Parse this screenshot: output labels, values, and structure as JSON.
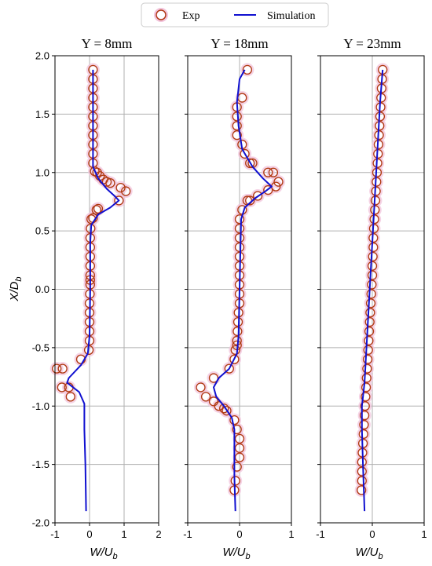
{
  "legend": {
    "exp_label": "Exp",
    "sim_label": "Simulation",
    "position": "top-center"
  },
  "colors": {
    "exp_marker": "#b03a10",
    "exp_halo": "#f2c4dc",
    "simulation_line": "#1010d0",
    "grid": "#b0b0b0"
  },
  "chart_data": [
    {
      "type": "scatter",
      "title": "Y = 8mm",
      "xlabel": "W/U_b",
      "ylabel": "X/D_b",
      "xlim": [
        -1,
        2
      ],
      "ylim": [
        -2,
        2
      ],
      "xticks": [
        "-1",
        "0",
        "1",
        "2"
      ],
      "yticks": [
        "2.0",
        "1.5",
        "1.0",
        "0.5",
        "0.0",
        "-0.5",
        "-1.0",
        "-1.5",
        "-2.0"
      ],
      "grid": true,
      "series": [
        {
          "name": "Exp",
          "kind": "markers",
          "points": [
            [
              0.1,
              1.88
            ],
            [
              0.1,
              1.8
            ],
            [
              0.1,
              1.72
            ],
            [
              0.1,
              1.64
            ],
            [
              0.1,
              1.56
            ],
            [
              0.1,
              1.48
            ],
            [
              0.1,
              1.4
            ],
            [
              0.1,
              1.32
            ],
            [
              0.1,
              1.24
            ],
            [
              0.1,
              1.16
            ],
            [
              0.1,
              1.08
            ],
            [
              0.15,
              1.01
            ],
            [
              0.22,
              1.0
            ],
            [
              0.3,
              0.97
            ],
            [
              0.4,
              0.94
            ],
            [
              0.5,
              0.92
            ],
            [
              0.6,
              0.91
            ],
            [
              0.9,
              0.87
            ],
            [
              1.05,
              0.84
            ],
            [
              0.85,
              0.76
            ],
            [
              0.25,
              0.69
            ],
            [
              0.2,
              0.68
            ],
            [
              0.1,
              0.61
            ],
            [
              0.05,
              0.6
            ],
            [
              0.03,
              0.52
            ],
            [
              0.02,
              0.44
            ],
            [
              0.02,
              0.36
            ],
            [
              0.02,
              0.28
            ],
            [
              0.02,
              0.2
            ],
            [
              0.02,
              0.12
            ],
            [
              0.02,
              0.08
            ],
            [
              0.02,
              0.04
            ],
            [
              0.01,
              -0.04
            ],
            [
              0.0,
              -0.12
            ],
            [
              0.0,
              -0.2
            ],
            [
              0.0,
              -0.28
            ],
            [
              0.0,
              -0.36
            ],
            [
              0.0,
              -0.44
            ],
            [
              -0.02,
              -0.52
            ],
            [
              -0.25,
              -0.6
            ],
            [
              -0.95,
              -0.68
            ],
            [
              -0.78,
              -0.68
            ],
            [
              -0.8,
              -0.84
            ],
            [
              -0.6,
              -0.84
            ],
            [
              -0.55,
              -0.92
            ]
          ]
        },
        {
          "name": "Simulation",
          "kind": "line",
          "points": [
            [
              0.1,
              1.88
            ],
            [
              0.1,
              1.5
            ],
            [
              0.1,
              1.2
            ],
            [
              0.1,
              1.05
            ],
            [
              0.25,
              0.95
            ],
            [
              0.5,
              0.86
            ],
            [
              0.72,
              0.8
            ],
            [
              0.85,
              0.76
            ],
            [
              0.6,
              0.7
            ],
            [
              0.25,
              0.64
            ],
            [
              0.05,
              0.55
            ],
            [
              0.02,
              0.4
            ],
            [
              0.02,
              0.0
            ],
            [
              0.0,
              -0.4
            ],
            [
              -0.05,
              -0.55
            ],
            [
              -0.25,
              -0.65
            ],
            [
              -0.6,
              -0.76
            ],
            [
              -0.65,
              -0.8
            ],
            [
              -0.3,
              -0.88
            ],
            [
              -0.15,
              -0.98
            ],
            [
              -0.15,
              -1.2
            ],
            [
              -0.12,
              -1.5
            ],
            [
              -0.1,
              -1.9
            ]
          ]
        }
      ]
    },
    {
      "type": "scatter",
      "title": "Y = 18mm",
      "xlabel": "W/U_b",
      "ylabel": "",
      "xlim": [
        -1,
        1
      ],
      "ylim": [
        -2,
        2
      ],
      "xticks": [
        "-1",
        "0",
        "1"
      ],
      "grid": true,
      "series": [
        {
          "name": "Exp",
          "kind": "markers",
          "points": [
            [
              0.15,
              1.88
            ],
            [
              0.05,
              1.64
            ],
            [
              -0.05,
              1.56
            ],
            [
              -0.05,
              1.48
            ],
            [
              -0.05,
              1.4
            ],
            [
              -0.05,
              1.32
            ],
            [
              0.05,
              1.24
            ],
            [
              0.1,
              1.16
            ],
            [
              0.2,
              1.08
            ],
            [
              0.25,
              1.08
            ],
            [
              0.55,
              1.0
            ],
            [
              0.65,
              1.0
            ],
            [
              0.75,
              0.92
            ],
            [
              0.7,
              0.88
            ],
            [
              0.55,
              0.85
            ],
            [
              0.35,
              0.8
            ],
            [
              0.2,
              0.76
            ],
            [
              0.15,
              0.76
            ],
            [
              0.05,
              0.68
            ],
            [
              0.0,
              0.6
            ],
            [
              0.0,
              0.52
            ],
            [
              0.0,
              0.44
            ],
            [
              0.0,
              0.36
            ],
            [
              0.0,
              0.28
            ],
            [
              0.0,
              0.2
            ],
            [
              0.0,
              0.12
            ],
            [
              0.0,
              0.04
            ],
            [
              0.0,
              -0.04
            ],
            [
              0.0,
              -0.12
            ],
            [
              -0.02,
              -0.2
            ],
            [
              -0.03,
              -0.28
            ],
            [
              -0.04,
              -0.36
            ],
            [
              -0.05,
              -0.44
            ],
            [
              -0.05,
              -0.48
            ],
            [
              -0.08,
              -0.52
            ],
            [
              -0.1,
              -0.6
            ],
            [
              -0.2,
              -0.68
            ],
            [
              -0.5,
              -0.76
            ],
            [
              -0.75,
              -0.84
            ],
            [
              -0.65,
              -0.92
            ],
            [
              -0.5,
              -0.96
            ],
            [
              -0.4,
              -1.0
            ],
            [
              -0.3,
              -1.02
            ],
            [
              -0.25,
              -1.04
            ],
            [
              -0.1,
              -1.12
            ],
            [
              -0.05,
              -1.2
            ],
            [
              0.0,
              -1.28
            ],
            [
              0.0,
              -1.36
            ],
            [
              0.0,
              -1.44
            ],
            [
              -0.05,
              -1.52
            ],
            [
              -0.08,
              -1.64
            ],
            [
              -0.1,
              -1.72
            ]
          ]
        },
        {
          "name": "Simulation",
          "kind": "line",
          "points": [
            [
              0.1,
              1.88
            ],
            [
              0.0,
              1.8
            ],
            [
              -0.05,
              1.6
            ],
            [
              -0.02,
              1.4
            ],
            [
              0.05,
              1.2
            ],
            [
              0.25,
              1.05
            ],
            [
              0.45,
              0.95
            ],
            [
              0.62,
              0.88
            ],
            [
              0.5,
              0.84
            ],
            [
              0.3,
              0.78
            ],
            [
              0.1,
              0.7
            ],
            [
              0.03,
              0.6
            ],
            [
              0.02,
              0.4
            ],
            [
              0.0,
              0.0
            ],
            [
              -0.02,
              -0.4
            ],
            [
              -0.05,
              -0.55
            ],
            [
              -0.2,
              -0.68
            ],
            [
              -0.4,
              -0.76
            ],
            [
              -0.5,
              -0.84
            ],
            [
              -0.45,
              -0.92
            ],
            [
              -0.3,
              -1.0
            ],
            [
              -0.15,
              -1.1
            ],
            [
              -0.1,
              -1.2
            ],
            [
              -0.1,
              -1.4
            ],
            [
              -0.1,
              -1.6
            ],
            [
              -0.08,
              -1.9
            ]
          ]
        }
      ]
    },
    {
      "type": "scatter",
      "title": "Y = 23mm",
      "xlabel": "W/U_b",
      "ylabel": "",
      "xlim": [
        -1,
        1
      ],
      "ylim": [
        -2,
        2
      ],
      "xticks": [
        "-1",
        "0",
        "1"
      ],
      "grid": true,
      "series": [
        {
          "name": "Exp",
          "kind": "markers",
          "points": [
            [
              0.2,
              1.88
            ],
            [
              0.19,
              1.8
            ],
            [
              0.18,
              1.72
            ],
            [
              0.17,
              1.64
            ],
            [
              0.16,
              1.56
            ],
            [
              0.15,
              1.48
            ],
            [
              0.14,
              1.4
            ],
            [
              0.13,
              1.32
            ],
            [
              0.12,
              1.24
            ],
            [
              0.11,
              1.16
            ],
            [
              0.1,
              1.08
            ],
            [
              0.09,
              1.0
            ],
            [
              0.08,
              0.92
            ],
            [
              0.07,
              0.84
            ],
            [
              0.06,
              0.76
            ],
            [
              0.05,
              0.68
            ],
            [
              0.04,
              0.6
            ],
            [
              0.03,
              0.52
            ],
            [
              0.02,
              0.44
            ],
            [
              0.02,
              0.36
            ],
            [
              0.01,
              0.28
            ],
            [
              0.0,
              0.2
            ],
            [
              0.0,
              0.12
            ],
            [
              -0.01,
              0.04
            ],
            [
              -0.02,
              -0.04
            ],
            [
              -0.03,
              -0.12
            ],
            [
              -0.04,
              -0.2
            ],
            [
              -0.05,
              -0.28
            ],
            [
              -0.06,
              -0.36
            ],
            [
              -0.07,
              -0.44
            ],
            [
              -0.08,
              -0.52
            ],
            [
              -0.09,
              -0.6
            ],
            [
              -0.1,
              -0.68
            ],
            [
              -0.11,
              -0.76
            ],
            [
              -0.12,
              -0.84
            ],
            [
              -0.13,
              -0.92
            ],
            [
              -0.14,
              -1.0
            ],
            [
              -0.15,
              -1.08
            ],
            [
              -0.16,
              -1.16
            ],
            [
              -0.17,
              -1.24
            ],
            [
              -0.18,
              -1.32
            ],
            [
              -0.19,
              -1.4
            ],
            [
              -0.2,
              -1.48
            ],
            [
              -0.2,
              -1.56
            ],
            [
              -0.2,
              -1.64
            ],
            [
              -0.21,
              -1.72
            ]
          ]
        },
        {
          "name": "Simulation",
          "kind": "line",
          "points": [
            [
              0.2,
              1.88
            ],
            [
              0.15,
              1.6
            ],
            [
              0.1,
              1.2
            ],
            [
              0.05,
              0.8
            ],
            [
              0.0,
              0.4
            ],
            [
              -0.05,
              0.0
            ],
            [
              -0.1,
              -0.4
            ],
            [
              -0.15,
              -0.8
            ],
            [
              -0.2,
              -1.0
            ],
            [
              -0.2,
              -1.2
            ],
            [
              -0.18,
              -1.5
            ],
            [
              -0.15,
              -1.9
            ]
          ]
        }
      ]
    }
  ]
}
